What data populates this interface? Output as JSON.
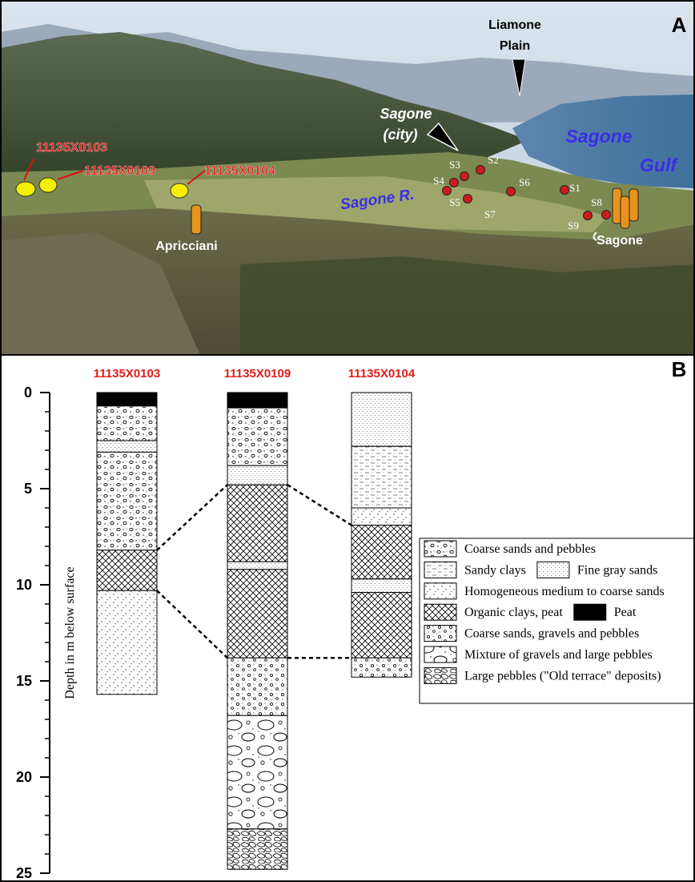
{
  "panel_a": {
    "label": "A",
    "places": {
      "liamone_1": "Liamone",
      "liamone_2": "Plain",
      "city_1": "Sagone",
      "city_2": "(city)",
      "gulf_1": "Sagone",
      "gulf_2": "Gulf",
      "river": "Sagone R.",
      "town": "Sagone",
      "apricciani": "Apricciani"
    },
    "wells": [
      "11135X0103",
      "11135X0109",
      "11135X0104"
    ],
    "stations": [
      "S1",
      "S2",
      "S3",
      "S4",
      "S5",
      "S6",
      "S7",
      "S8",
      "S9"
    ]
  },
  "panel_b": {
    "label": "B",
    "axis_label": "Depth in m below surface",
    "ylim": [
      0,
      25
    ],
    "yticks": [
      0,
      5,
      10,
      15,
      20,
      25
    ],
    "yminor": [
      1,
      2,
      3,
      4,
      6,
      7,
      8,
      9,
      11,
      12,
      13,
      14,
      16,
      17,
      18,
      19,
      21,
      22,
      23,
      24
    ],
    "boreholes": [
      {
        "name": "11135X0103",
        "layers": [
          {
            "top": 0,
            "bottom": 0.7,
            "pattern": "peat"
          },
          {
            "top": 0.7,
            "bottom": 2.5,
            "pattern": "coarse-pebbles"
          },
          {
            "top": 2.5,
            "bottom": 3.1,
            "pattern": "fine-gray"
          },
          {
            "top": 3.1,
            "bottom": 8.2,
            "pattern": "coarse-pebbles"
          },
          {
            "top": 8.2,
            "bottom": 10.3,
            "pattern": "organic"
          },
          {
            "top": 10.3,
            "bottom": 15.7,
            "pattern": "homogeneous"
          }
        ]
      },
      {
        "name": "11135X0109",
        "layers": [
          {
            "top": 0,
            "bottom": 0.8,
            "pattern": "peat"
          },
          {
            "top": 0.8,
            "bottom": 3.8,
            "pattern": "coarse-pebbles"
          },
          {
            "top": 3.8,
            "bottom": 4.8,
            "pattern": "fine-gray"
          },
          {
            "top": 4.8,
            "bottom": 8.8,
            "pattern": "organic"
          },
          {
            "top": 8.8,
            "bottom": 9.2,
            "pattern": "fine-gray"
          },
          {
            "top": 9.2,
            "bottom": 13.8,
            "pattern": "organic"
          },
          {
            "top": 13.8,
            "bottom": 16.8,
            "pattern": "coarse-gravels"
          },
          {
            "top": 16.8,
            "bottom": 22.7,
            "pattern": "gravel-large"
          },
          {
            "top": 22.7,
            "bottom": 24.8,
            "pattern": "large-pebbles"
          }
        ]
      },
      {
        "name": "11135X0104",
        "layers": [
          {
            "top": 0,
            "bottom": 2.8,
            "pattern": "fine-gray"
          },
          {
            "top": 2.8,
            "bottom": 6.0,
            "pattern": "sandy-clays"
          },
          {
            "top": 6.0,
            "bottom": 6.9,
            "pattern": "homogeneous"
          },
          {
            "top": 6.9,
            "bottom": 9.7,
            "pattern": "organic"
          },
          {
            "top": 9.7,
            "bottom": 10.4,
            "pattern": "fine-gray"
          },
          {
            "top": 10.4,
            "bottom": 13.8,
            "pattern": "organic"
          },
          {
            "top": 13.8,
            "bottom": 14.8,
            "pattern": "coarse-gravels"
          }
        ]
      }
    ],
    "legend": {
      "rows": [
        [
          {
            "pattern": "coarse-pebbles",
            "label": "Coarse sands and pebbles"
          }
        ],
        [
          {
            "pattern": "sandy-clays",
            "label": "Sandy clays"
          },
          {
            "pattern": "fine-gray",
            "label": "Fine gray sands"
          }
        ],
        [
          {
            "pattern": "homogeneous",
            "label": "Homogeneous medium to coarse sands"
          }
        ],
        [
          {
            "pattern": "organic",
            "label": "Organic clays, peat"
          },
          {
            "pattern": "peat",
            "label": "Peat"
          }
        ],
        [
          {
            "pattern": "coarse-gravels",
            "label": "Coarse sands, gravels and pebbles"
          }
        ],
        [
          {
            "pattern": "gravel-large",
            "label": "Mixture of gravels and large pebbles"
          }
        ],
        [
          {
            "pattern": "large-pebbles",
            "label": "Large pebbles (\"Old terrace\" deposits)"
          }
        ]
      ]
    }
  }
}
